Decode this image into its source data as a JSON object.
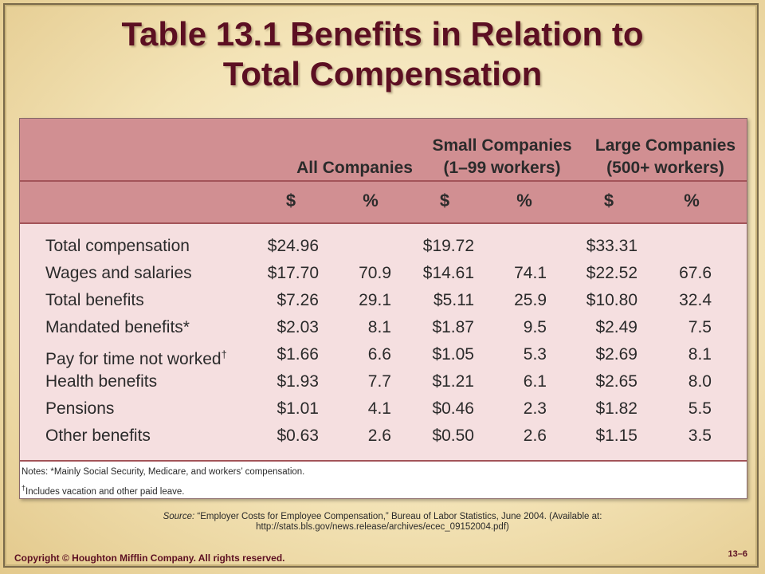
{
  "slide": {
    "title_line1": "Table 13.1  Benefits in Relation to",
    "title_line2": "Total Compensation",
    "colors": {
      "title": "#5c0f22",
      "header_bg": "#d18f92",
      "body_bg": "#f5dfe0",
      "rule": "#a35459"
    }
  },
  "table": {
    "groups": [
      {
        "line1": "",
        "line2": "All Companies"
      },
      {
        "line1": "Small Companies",
        "line2": "(1–99 workers)"
      },
      {
        "line1": "Large Companies",
        "line2": "(500+ workers)"
      }
    ],
    "units": [
      "$",
      "%",
      "$",
      "%",
      "$",
      "%"
    ],
    "rows": [
      {
        "label": "Total compensation",
        "mark": "",
        "cells": [
          "$24.96",
          "",
          "$19.72",
          "",
          "$33.31",
          ""
        ]
      },
      {
        "label": "Wages and salaries",
        "mark": "",
        "cells": [
          "$17.70",
          "70.9",
          "$14.61",
          "74.1",
          "$22.52",
          "67.6"
        ]
      },
      {
        "label": "Total benefits",
        "mark": "",
        "cells": [
          "$7.26",
          "29.1",
          "$5.11",
          "25.9",
          "$10.80",
          "32.4"
        ]
      },
      {
        "label": "Mandated benefits*",
        "mark": "",
        "cells": [
          "$2.03",
          "8.1",
          "$1.87",
          "9.5",
          "$2.49",
          "7.5"
        ]
      },
      {
        "label": "Pay for time not worked",
        "mark": "†",
        "cells": [
          "$1.66",
          "6.6",
          "$1.05",
          "5.3",
          "$2.69",
          "8.1"
        ]
      },
      {
        "label": "Health benefits",
        "mark": "",
        "cells": [
          "$1.93",
          "7.7",
          "$1.21",
          "6.1",
          "$2.65",
          "8.0"
        ]
      },
      {
        "label": "Pensions",
        "mark": "",
        "cells": [
          "$1.01",
          "4.1",
          "$0.46",
          "2.3",
          "$1.82",
          "5.5"
        ]
      },
      {
        "label": "Other benefits",
        "mark": "",
        "cells": [
          "$0.63",
          "2.6",
          "$0.50",
          "2.6",
          "$1.15",
          "3.5"
        ]
      }
    ],
    "notes": {
      "line1": "Notes: *Mainly Social Security, Medicare, and workers’ compensation.",
      "mark": "†",
      "line2": "Includes vacation and other paid leave."
    }
  },
  "source": {
    "label": "Source:",
    "text": " “Employer Costs for Employee Compensation,” Bureau of Labor Statistics, June 2004. (Available at: http://stats.bls.gov/news.release/archives/ecec_09152004.pdf)"
  },
  "footer": {
    "copyright": "Copyright © Houghton Mifflin Company. All rights reserved.",
    "page": "13–6"
  }
}
